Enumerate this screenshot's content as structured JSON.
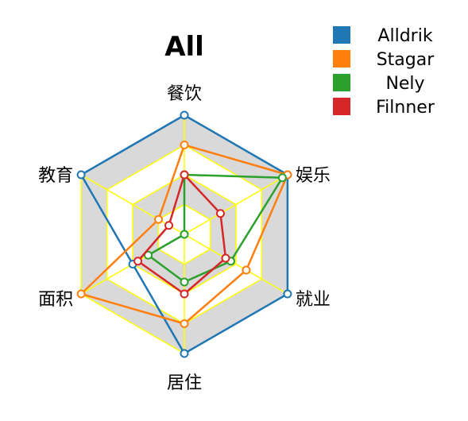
{
  "chart_data": {
    "type": "radar",
    "title": "All",
    "axes": [
      "餐饮",
      "娱乐",
      "就业",
      "居住",
      "面积",
      "教育"
    ],
    "rmax": 1,
    "rings": [
      0.25,
      0.5,
      0.75,
      1.0
    ],
    "grid_color": "#ffff00",
    "band_fill": "#d9d9d9",
    "legend_position": "top-right",
    "series": [
      {
        "name": "Alldrik",
        "color": "#1f77b4",
        "values": [
          1.0,
          1.0,
          1.0,
          1.0,
          0.5,
          1.0
        ]
      },
      {
        "name": "Stagar",
        "color": "#ff7f0e",
        "values": [
          0.75,
          1.0,
          0.6,
          0.75,
          1.0,
          0.25
        ]
      },
      {
        "name": "Nely",
        "color": "#2ca02c",
        "values": [
          0.5,
          0.95,
          0.45,
          0.4,
          0.35,
          0.0
        ]
      },
      {
        "name": "Filnner",
        "color": "#d62728",
        "values": [
          0.5,
          0.35,
          0.4,
          0.5,
          0.45,
          0.15
        ]
      }
    ]
  }
}
